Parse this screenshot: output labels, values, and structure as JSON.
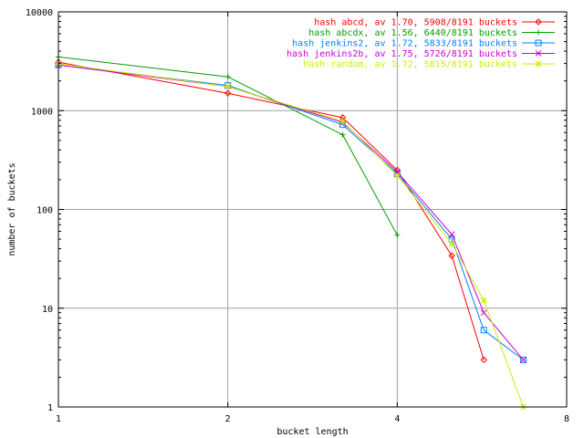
{
  "chart_data": {
    "type": "line",
    "title": "",
    "xlabel": "bucket length",
    "ylabel": "number of buckets",
    "x_scale": "log2",
    "y_scale": "log10",
    "xlim": [
      1,
      8
    ],
    "ylim": [
      1,
      10000
    ],
    "x_ticks": [
      1,
      2,
      4,
      8
    ],
    "x_tick_labels": [
      "1",
      "2",
      "4",
      "8"
    ],
    "y_ticks": [
      1,
      10,
      100,
      1000,
      10000
    ],
    "y_tick_labels": [
      "1",
      "10",
      "100",
      "1000",
      "10000"
    ],
    "grid": true,
    "legend_position": "top-right",
    "series": [
      {
        "name": "hash abcd, av 1.70, 5908/8191 buckets",
        "color": "#ff0000",
        "marker": "diamond",
        "dashed": false,
        "x": [
          1,
          2,
          3.2,
          4,
          5,
          5.7
        ],
        "y": [
          3100,
          1500,
          850,
          250,
          34,
          3
        ]
      },
      {
        "name": "hash abcdx, av 1.56, 6440/8191 buckets",
        "color": "#00a000",
        "marker": "plus",
        "dashed": false,
        "x": [
          1,
          2,
          3.2,
          4
        ],
        "y": [
          3500,
          2200,
          570,
          55
        ]
      },
      {
        "name": "hash jenkins2, av 1.72, 5833/8191 buckets",
        "color": "#0080ff",
        "marker": "square",
        "dashed": false,
        "x": [
          1,
          2,
          3.2,
          4,
          5,
          5.7,
          6.7
        ],
        "y": [
          2900,
          1800,
          720,
          230,
          50,
          6,
          3
        ]
      },
      {
        "name": "hash jenkins2b, av 1.75, 5726/8191 buckets",
        "color": "#cc00cc",
        "marker": "x",
        "dashed": false,
        "x": [
          1,
          2,
          3.2,
          4,
          5,
          5.7,
          6.7
        ],
        "y": [
          2900,
          1750,
          760,
          240,
          56,
          9,
          3
        ]
      },
      {
        "name": "hash random, av 1.72, 5815/8191 buckets",
        "color": "#ccee00",
        "marker": "star",
        "dashed": false,
        "x": [
          1,
          2,
          3.2,
          4,
          5,
          5.7,
          6.7
        ],
        "y": [
          3000,
          1750,
          780,
          220,
          45,
          12,
          1
        ]
      }
    ]
  }
}
